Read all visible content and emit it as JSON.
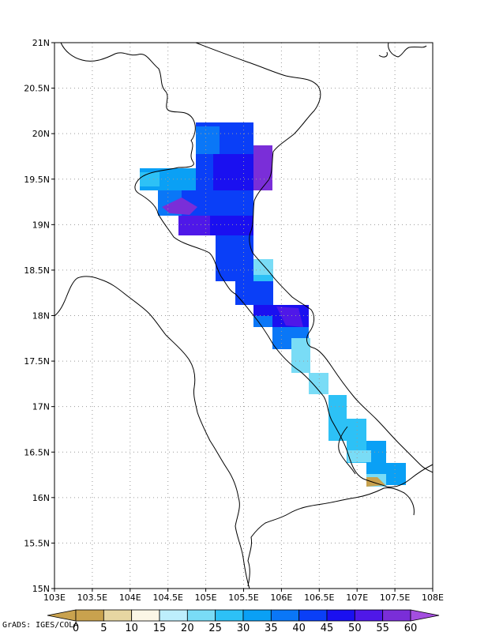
{
  "map": {
    "lon_labels": [
      "103E",
      "103.5E",
      "104E",
      "104.5E",
      "105E",
      "105.5E",
      "106E",
      "106.5E",
      "107E",
      "107.5E",
      "108E"
    ],
    "lat_labels": [
      "21N",
      "20.5N",
      "20N",
      "19.5N",
      "19N",
      "18.5N",
      "18N",
      "17.5N",
      "17N",
      "16.5N",
      "16N",
      "15.5N",
      "15N"
    ],
    "lon_range": [
      103,
      108
    ],
    "lat_range": [
      15,
      21
    ],
    "grid": "dotted",
    "grid_step_deg": 0.5
  },
  "colorbar": {
    "labels": [
      "0",
      "5",
      "10",
      "15",
      "20",
      "25",
      "30",
      "35",
      "40",
      "45",
      "50",
      "55",
      "60"
    ],
    "colors": [
      "#c9a24e",
      "#e7d6a2",
      "#fbf6e6",
      "#bdeefc",
      "#79dcf6",
      "#2dc1f6",
      "#0aa0f5",
      "#0a77f7",
      "#0a3ff7",
      "#1a10f0",
      "#4f18e8",
      "#7a2ed8",
      "#a44ee0"
    ]
  },
  "precip_cells": [
    {
      "lon": 104.65,
      "lat": 20.0,
      "cat": "35-40"
    },
    {
      "lon": 104.85,
      "lat": 20.0,
      "cat": "30-35"
    },
    {
      "lon": 105.05,
      "lat": 20.0,
      "cat": "35-40"
    },
    {
      "lon": 105.25,
      "lat": 20.0,
      "cat": "45-50"
    },
    {
      "lon": 105.45,
      "lat": 20.0,
      "cat": "45-50"
    },
    {
      "lon": 105.65,
      "lat": 19.8,
      "cat": "50-55"
    },
    {
      "lon": 104.25,
      "lat": 19.5,
      "cat": "30-35"
    },
    {
      "lon": 104.5,
      "lat": 19.5,
      "cat": "35-40"
    },
    {
      "lon": 104.85,
      "lat": 19.5,
      "cat": "40-45"
    },
    {
      "lon": 105.2,
      "lat": 19.5,
      "cat": "45-50"
    },
    {
      "lon": 105.45,
      "lat": 19.5,
      "cat": "50-55"
    },
    {
      "lon": 105.7,
      "lat": 19.5,
      "cat": "55-60"
    },
    {
      "lon": 104.6,
      "lat": 19.2,
      "cat": "50-55"
    },
    {
      "lon": 104.8,
      "lat": 19.1,
      "cat": "55-60"
    },
    {
      "lon": 105.2,
      "lat": 19.1,
      "cat": "45-50"
    },
    {
      "lon": 105.45,
      "lat": 19.0,
      "cat": "45-50"
    },
    {
      "lon": 105.3,
      "lat": 18.6,
      "cat": "45-50"
    },
    {
      "lon": 105.6,
      "lat": 18.5,
      "cat": "30-35"
    },
    {
      "lon": 105.5,
      "lat": 18.2,
      "cat": "40-45"
    },
    {
      "lon": 106.0,
      "lat": 18.0,
      "cat": "50-55"
    },
    {
      "lon": 106.25,
      "lat": 17.8,
      "cat": "35-40"
    },
    {
      "lon": 106.2,
      "lat": 17.5,
      "cat": "25-30"
    },
    {
      "lon": 106.45,
      "lat": 17.25,
      "cat": "20-25"
    },
    {
      "lon": 106.75,
      "lat": 16.95,
      "cat": "30-35"
    },
    {
      "lon": 106.95,
      "lat": 16.7,
      "cat": "35-40"
    },
    {
      "lon": 107.2,
      "lat": 16.45,
      "cat": "35-40"
    },
    {
      "lon": 107.45,
      "lat": 16.25,
      "cat": "35-40"
    },
    {
      "lon": 107.2,
      "lat": 16.15,
      "cat": "0-5"
    }
  ],
  "credit": "GrADS: IGES/COLA"
}
